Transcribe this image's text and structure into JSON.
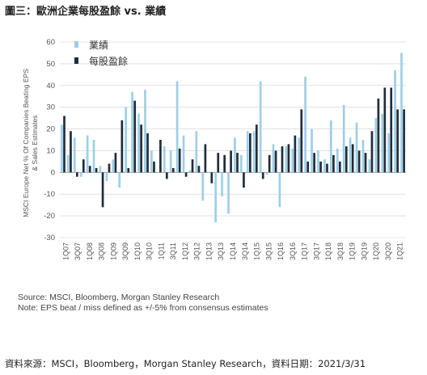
{
  "header": {
    "title": "圖三：歐洲企業每股盈餘 vs. 業績"
  },
  "footer": {
    "source_line1": "Source: MSCI, Bloomberg, Morgan Stanley Research",
    "source_line2": "Note: EPS beat / miss defined as +/-5% from consensus estimates",
    "caption": "資料來源：MSCI，Bloomberg，Morgan Stanley Research，資料日期：2021/3/31"
  },
  "colors": {
    "sales": "#9ecfe6",
    "eps": "#1f2d3d",
    "grid": "#cfcfcf",
    "axis_text": "#555555"
  },
  "chart_data": {
    "type": "bar",
    "ylabel": "MSCI Europe Net % Of Companies Beating EPS & Sales Estimates",
    "ylim": [
      -30,
      60
    ],
    "yticks": [
      -30,
      -20,
      -10,
      0,
      10,
      20,
      30,
      40,
      50,
      60
    ],
    "x_tick_labels": [
      "1Q07",
      "3Q07",
      "1Q08",
      "3Q08",
      "1Q09",
      "3Q09",
      "1Q10",
      "3Q10",
      "1Q11",
      "3Q11",
      "1Q12",
      "3Q12",
      "1Q13",
      "3Q13",
      "1Q14",
      "3Q14",
      "1Q15",
      "3Q15",
      "1Q16",
      "3Q16",
      "1Q17",
      "3Q17",
      "1Q18",
      "3Q18",
      "1Q19",
      "3Q19",
      "1Q20",
      "3Q20",
      "1Q21"
    ],
    "legend": {
      "position": "top-left"
    },
    "series": [
      {
        "name": "業績",
        "values": [
          22,
          8,
          16,
          -2,
          17,
          15,
          3,
          -4,
          6,
          -7,
          30,
          37,
          27,
          38,
          10,
          0,
          12,
          10,
          42,
          17,
          1,
          19,
          -13,
          0,
          -23,
          -11,
          -19,
          16,
          8,
          19,
          19,
          42,
          -1,
          13,
          -16,
          12,
          11,
          16,
          44,
          20,
          10,
          6,
          24,
          11,
          31,
          16,
          23,
          15,
          6,
          25,
          27,
          18,
          47,
          55
        ],
        "color": "sales"
      },
      {
        "name": "每股盈餘",
        "values": [
          26,
          19,
          -2,
          6,
          3,
          2,
          -16,
          4,
          9,
          24,
          2,
          33,
          22,
          18,
          5,
          15,
          -3,
          2,
          11,
          -2,
          6,
          3,
          13,
          -5,
          9,
          8,
          10,
          9,
          -7,
          18,
          22,
          -3,
          8,
          10,
          12,
          13,
          17,
          29,
          5,
          9,
          5,
          4,
          8,
          5,
          12,
          13,
          10,
          9,
          19,
          34,
          39,
          39,
          29,
          29
        ],
        "color": "eps"
      }
    ]
  }
}
